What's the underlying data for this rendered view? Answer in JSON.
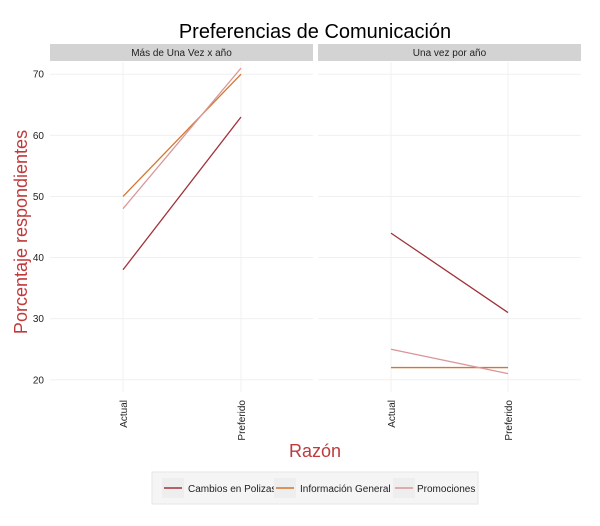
{
  "chart_data": {
    "type": "line",
    "title": "Preferencias de Comunicación",
    "xlabel": "Razón",
    "ylabel": "Porcentaje respondientes",
    "ylim": [
      18,
      72
    ],
    "yticks": [
      20,
      30,
      40,
      50,
      60,
      70
    ],
    "categories": [
      "Actual",
      "Preferido"
    ],
    "grid": true,
    "legend": "bottom",
    "colors": {
      "axis_title": "#c0393b",
      "strip_bg": "#d3d3d3",
      "grid": "#f0f0f0"
    },
    "panels": [
      {
        "name": "Más de Una Vez x año",
        "series": [
          {
            "name": "Cambios en Polizas",
            "color": "#a0323a",
            "values": [
              38,
              63
            ]
          },
          {
            "name": "Información General",
            "color": "#d2772e",
            "values": [
              50,
              70
            ]
          },
          {
            "name": "Promociones",
            "color": "#d9969a",
            "values": [
              48,
              71
            ]
          }
        ]
      },
      {
        "name": "Una vez por año",
        "series": [
          {
            "name": "Cambios en Polizas",
            "color": "#a0323a",
            "values": [
              44,
              31
            ]
          },
          {
            "name": "Información General",
            "color": "#d2772e",
            "values": [
              22,
              22
            ]
          },
          {
            "name": "Promociones",
            "color": "#d9969a",
            "values": [
              25,
              21
            ]
          }
        ]
      }
    ]
  }
}
